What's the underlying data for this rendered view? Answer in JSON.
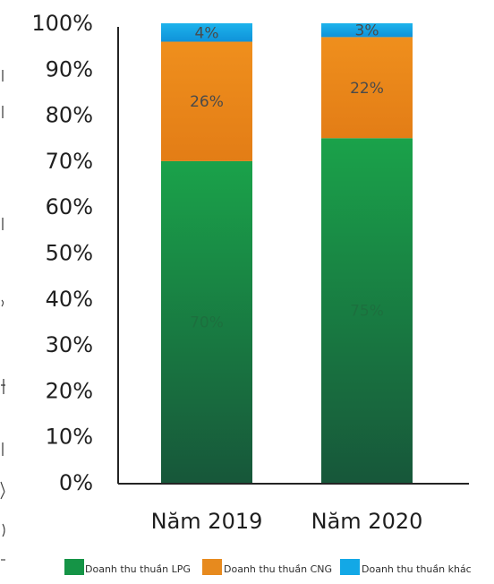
{
  "chart_data": {
    "type": "bar",
    "stacked": true,
    "categories": [
      "Năm 2019",
      "Năm 2020"
    ],
    "series": [
      {
        "name": "Doanh thu thuần LPG",
        "values": [
          70,
          75
        ],
        "color": "#159446"
      },
      {
        "name": "Doanh thu thuần CNG",
        "values": [
          26,
          22
        ],
        "color": "#e78a1e"
      },
      {
        "name": "Doanh thu thuần khác",
        "values": [
          4,
          3
        ],
        "color": "#13a8e6"
      }
    ],
    "ylim": [
      0,
      100
    ],
    "y_tick_labels": [
      "0%",
      "10%",
      "20%",
      "30%",
      "40%",
      "50%",
      "60%",
      "70%",
      "80%",
      "90%",
      "100%"
    ],
    "data_labels": [
      [
        "70%",
        "75%"
      ],
      [
        "26%",
        "22%"
      ],
      [
        "4%",
        "3%"
      ]
    ],
    "grid": false,
    "legend_position": "bottom",
    "title": "",
    "xlabel": "",
    "ylabel": ""
  }
}
